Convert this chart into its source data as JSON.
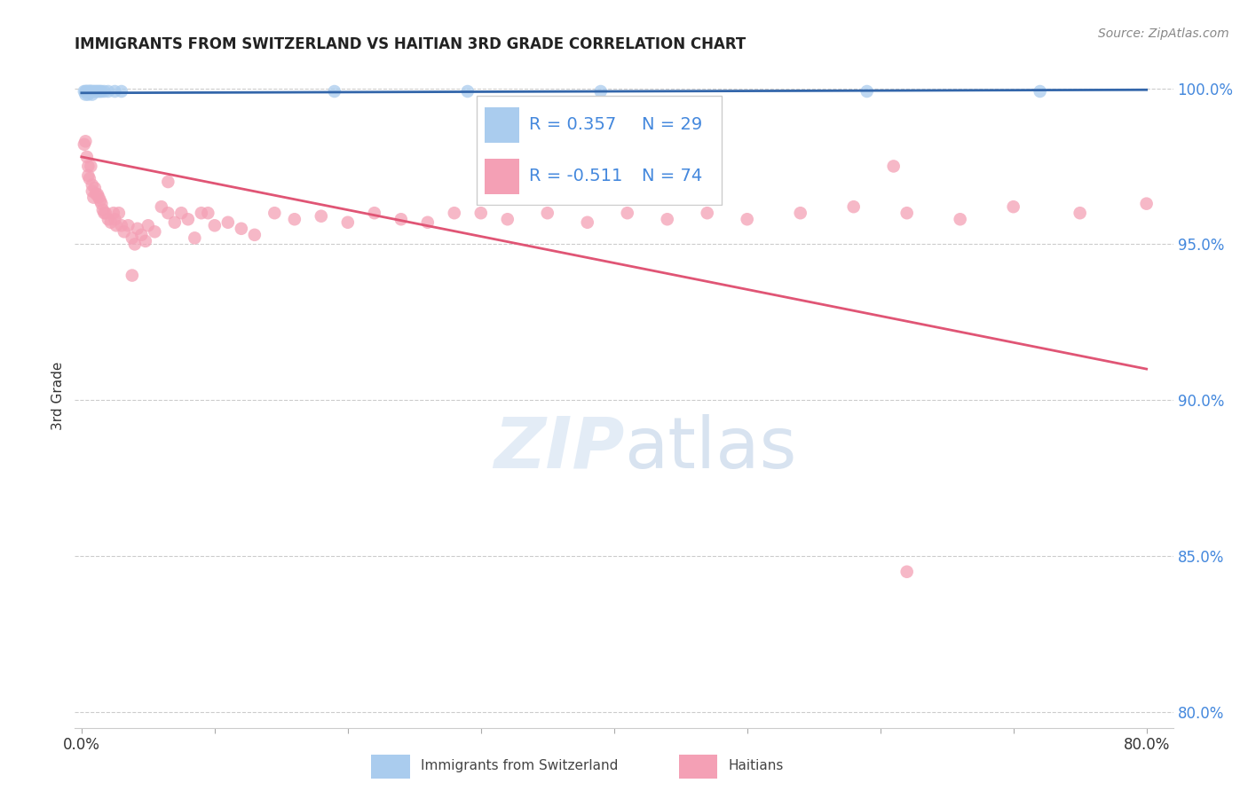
{
  "title": "IMMIGRANTS FROM SWITZERLAND VS HAITIAN 3RD GRADE CORRELATION CHART",
  "source": "Source: ZipAtlas.com",
  "ylabel": "3rd Grade",
  "swiss_R": 0.357,
  "swiss_N": 29,
  "haitian_R": -0.511,
  "haitian_N": 74,
  "swiss_color": "#aaccee",
  "haitian_color": "#f4a0b5",
  "swiss_line_color": "#3366aa",
  "haitian_line_color": "#e05575",
  "right_axis_color": "#4488dd",
  "ylim": [
    0.795,
    1.008
  ],
  "xlim": [
    -0.005,
    0.82
  ],
  "yticks": [
    0.8,
    0.85,
    0.9,
    0.95,
    1.0
  ],
  "ytick_labels": [
    "80.0%",
    "85.0%",
    "90.0%",
    "95.0%",
    "100.0%"
  ],
  "xticks": [
    0.0,
    0.1,
    0.2,
    0.3,
    0.4,
    0.5,
    0.6,
    0.7,
    0.8
  ],
  "xtick_labels": [
    "0.0%",
    "",
    "",
    "",
    "",
    "",
    "",
    "",
    "80.0%"
  ],
  "swiss_x": [
    0.002,
    0.003,
    0.004,
    0.004,
    0.005,
    0.006,
    0.006,
    0.007,
    0.007,
    0.008,
    0.009,
    0.01,
    0.011,
    0.012,
    0.013,
    0.014,
    0.015,
    0.017,
    0.02,
    0.025,
    0.03,
    0.19,
    0.29,
    0.39,
    0.59,
    0.72,
    0.003,
    0.005,
    0.008
  ],
  "swiss_y": [
    0.999,
    0.999,
    0.999,
    0.999,
    0.999,
    0.999,
    0.999,
    0.999,
    0.999,
    0.999,
    0.999,
    0.999,
    0.999,
    0.999,
    0.999,
    0.999,
    0.999,
    0.999,
    0.999,
    0.999,
    0.999,
    0.999,
    0.999,
    0.999,
    0.999,
    0.999,
    0.998,
    0.998,
    0.998
  ],
  "haitian_x": [
    0.002,
    0.003,
    0.004,
    0.005,
    0.005,
    0.006,
    0.007,
    0.008,
    0.008,
    0.009,
    0.01,
    0.011,
    0.012,
    0.013,
    0.014,
    0.015,
    0.016,
    0.017,
    0.018,
    0.02,
    0.022,
    0.024,
    0.025,
    0.026,
    0.028,
    0.03,
    0.032,
    0.035,
    0.038,
    0.04,
    0.042,
    0.045,
    0.048,
    0.05,
    0.055,
    0.06,
    0.065,
    0.07,
    0.075,
    0.08,
    0.085,
    0.09,
    0.095,
    0.1,
    0.11,
    0.12,
    0.13,
    0.145,
    0.16,
    0.18,
    0.2,
    0.22,
    0.24,
    0.26,
    0.28,
    0.3,
    0.32,
    0.35,
    0.38,
    0.41,
    0.44,
    0.47,
    0.5,
    0.54,
    0.58,
    0.62,
    0.66,
    0.7,
    0.75,
    0.8,
    0.038,
    0.065,
    0.61,
    0.62
  ],
  "haitian_y": [
    0.982,
    0.983,
    0.978,
    0.975,
    0.972,
    0.971,
    0.975,
    0.969,
    0.967,
    0.965,
    0.968,
    0.966,
    0.966,
    0.965,
    0.964,
    0.963,
    0.961,
    0.96,
    0.96,
    0.958,
    0.957,
    0.96,
    0.958,
    0.956,
    0.96,
    0.956,
    0.954,
    0.956,
    0.952,
    0.95,
    0.955,
    0.953,
    0.951,
    0.956,
    0.954,
    0.962,
    0.96,
    0.957,
    0.96,
    0.958,
    0.952,
    0.96,
    0.96,
    0.956,
    0.957,
    0.955,
    0.953,
    0.96,
    0.958,
    0.959,
    0.957,
    0.96,
    0.958,
    0.957,
    0.96,
    0.96,
    0.958,
    0.96,
    0.957,
    0.96,
    0.958,
    0.96,
    0.958,
    0.96,
    0.962,
    0.96,
    0.958,
    0.962,
    0.96,
    0.963,
    0.94,
    0.97,
    0.975,
    0.845
  ]
}
